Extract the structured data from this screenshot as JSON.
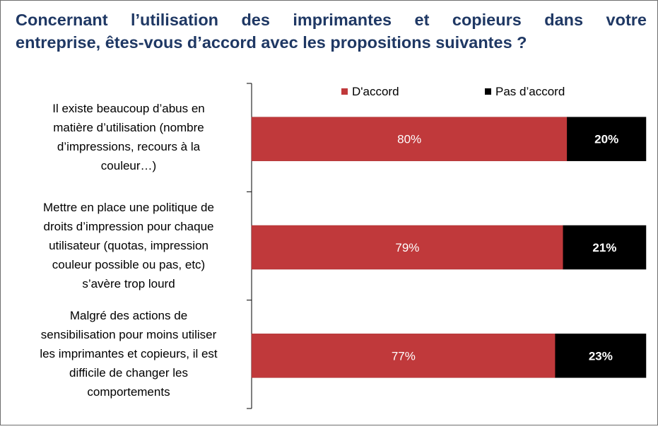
{
  "chart_data": {
    "type": "bar",
    "orientation": "horizontal",
    "stacked": true,
    "title_lines": [
      "Concernant l’utilisation des imprimantes et copieurs dans votre",
      "entreprise,  êtes-vous d’accord avec les propositions suivantes ?"
    ],
    "categories": [
      [
        "Il existe beaucoup d’abus en",
        "matière d’utilisation (nombre",
        "d’impressions, recours à la",
        "couleur…)"
      ],
      [
        "Mettre en place une politique de",
        "droits d’impression pour chaque",
        "utilisateur (quotas, impression",
        "couleur possible ou pas, etc)",
        "s’avère trop lourd"
      ],
      [
        "Malgré des actions de",
        "sensibilisation pour moins utiliser",
        "les imprimantes et copieurs, il est",
        "difficile de changer les",
        "comportements"
      ]
    ],
    "series": [
      {
        "name": "D'accord",
        "values": [
          80,
          79,
          77
        ],
        "labels": [
          "80%",
          "79%",
          "77%"
        ],
        "color": "#c0393b"
      },
      {
        "name": "Pas d’accord",
        "values": [
          20,
          21,
          23
        ],
        "labels": [
          "20%",
          "21%",
          "23%"
        ],
        "color": "#000000"
      }
    ],
    "xlim": [
      0,
      100
    ],
    "grid": false,
    "legend_position": "top-right"
  }
}
